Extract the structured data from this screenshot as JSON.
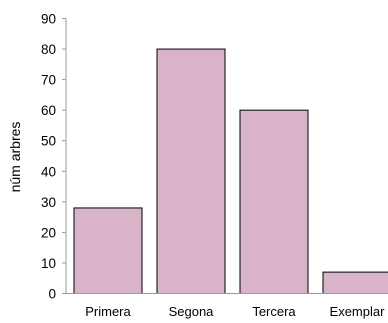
{
  "chart_data": {
    "type": "bar",
    "title": "",
    "xlabel": "",
    "ylabel": "núm arbres",
    "categories": [
      "Primera",
      "Segona",
      "Tercera",
      "Exemplar"
    ],
    "values": [
      28,
      80,
      60,
      7
    ],
    "ylim": [
      0,
      90
    ],
    "yticks": [
      0,
      10,
      20,
      30,
      40,
      50,
      60,
      70,
      80,
      90
    ],
    "grid": false,
    "legend": "none",
    "colors": {
      "bar_fill": "#d9b3c8",
      "bar_stroke": "#000000",
      "axis": "#999999",
      "text": "#000000"
    }
  }
}
